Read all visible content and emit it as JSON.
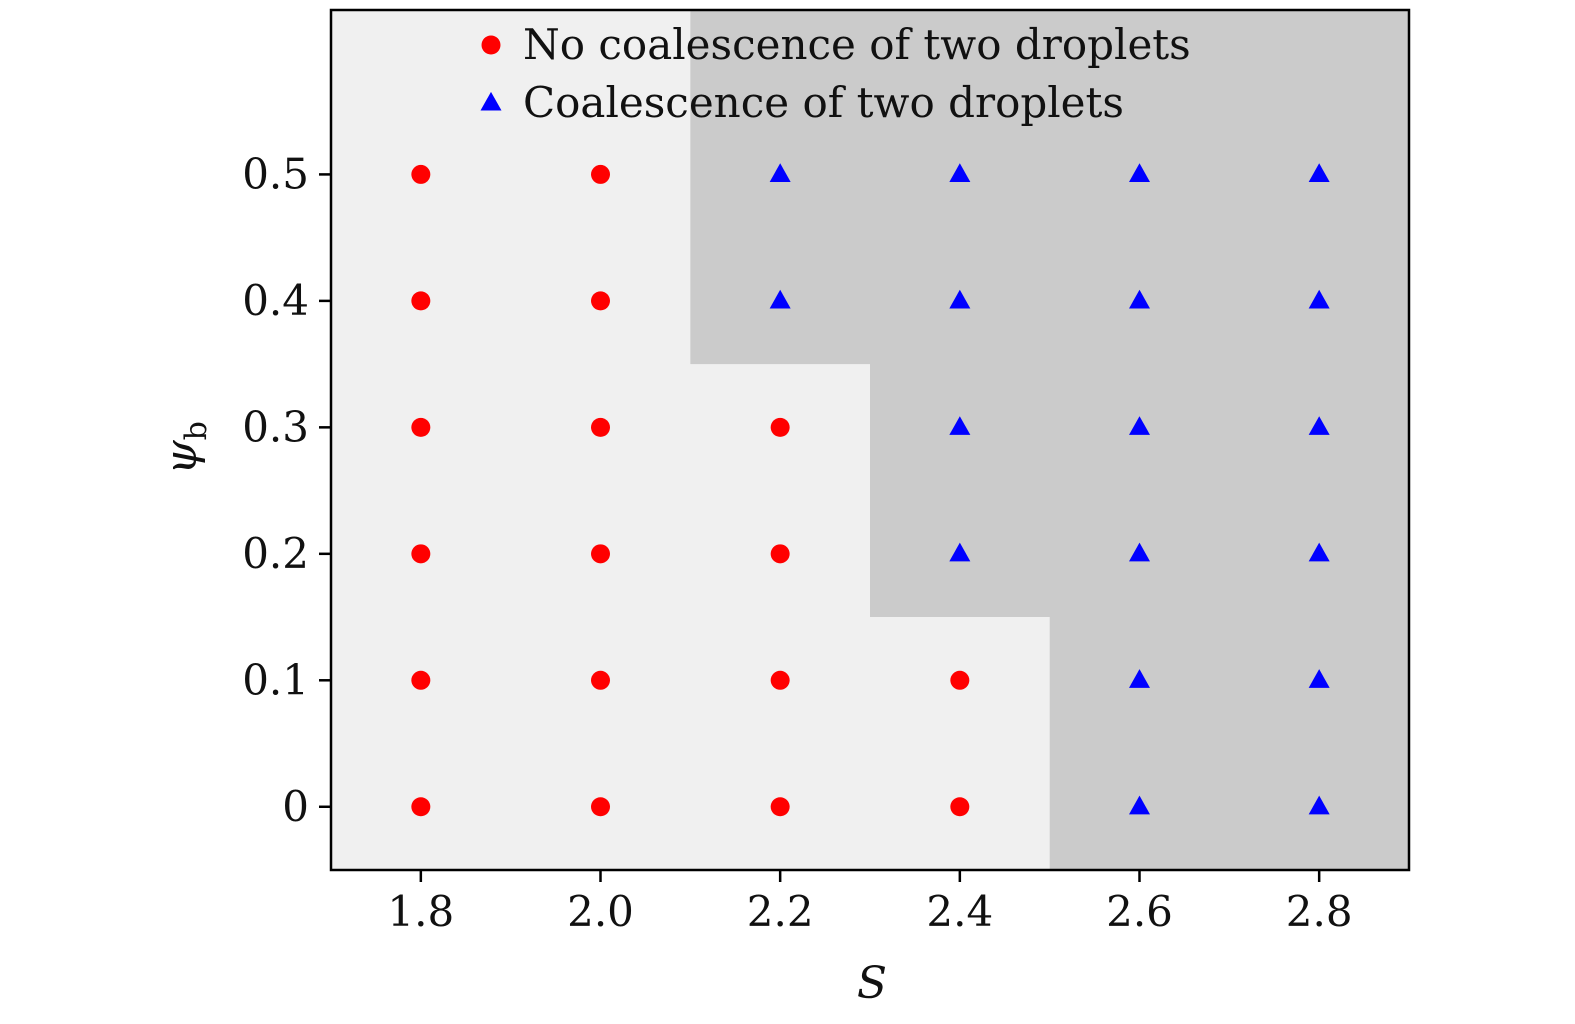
{
  "chart_data": {
    "type": "scatter",
    "xlabel": "S",
    "ylabel": {
      "symbol": "ψ",
      "subscript": "b"
    },
    "xlim": [
      1.7,
      2.9
    ],
    "ylim": [
      -0.05,
      0.63
    ],
    "x_ticks": [
      1.8,
      2.0,
      2.2,
      2.4,
      2.6,
      2.8
    ],
    "x_tick_labels": [
      "1.8",
      "2.0",
      "2.2",
      "2.4",
      "2.6",
      "2.8"
    ],
    "y_ticks": [
      0,
      0.1,
      0.2,
      0.3,
      0.4,
      0.5
    ],
    "y_tick_labels": [
      "0",
      "0.1",
      "0.2",
      "0.3",
      "0.4",
      "0.5"
    ],
    "grid": false,
    "legend_position": "top-center",
    "background_regions": [
      {
        "fill": "#f0f0f0",
        "polygon": [
          [
            1.7,
            -0.05
          ],
          [
            2.5,
            -0.05
          ],
          [
            2.5,
            0.15
          ],
          [
            2.3,
            0.15
          ],
          [
            2.3,
            0.35
          ],
          [
            2.1,
            0.35
          ],
          [
            2.1,
            0.63
          ],
          [
            1.7,
            0.63
          ]
        ]
      },
      {
        "fill": "#cbcbcb",
        "polygon": [
          [
            2.1,
            0.63
          ],
          [
            2.9,
            0.63
          ],
          [
            2.9,
            -0.05
          ],
          [
            2.5,
            -0.05
          ],
          [
            2.5,
            0.15
          ],
          [
            2.3,
            0.15
          ],
          [
            2.3,
            0.35
          ],
          [
            2.1,
            0.35
          ]
        ]
      }
    ],
    "series": [
      {
        "name": "No coalescence of two droplets",
        "marker": "circle",
        "color": "#ff0000",
        "points": [
          [
            1.8,
            0
          ],
          [
            1.8,
            0.1
          ],
          [
            1.8,
            0.2
          ],
          [
            1.8,
            0.3
          ],
          [
            1.8,
            0.4
          ],
          [
            1.8,
            0.5
          ],
          [
            2.0,
            0
          ],
          [
            2.0,
            0.1
          ],
          [
            2.0,
            0.2
          ],
          [
            2.0,
            0.3
          ],
          [
            2.0,
            0.4
          ],
          [
            2.0,
            0.5
          ],
          [
            2.2,
            0
          ],
          [
            2.2,
            0.1
          ],
          [
            2.2,
            0.2
          ],
          [
            2.2,
            0.3
          ],
          [
            2.4,
            0
          ],
          [
            2.4,
            0.1
          ]
        ]
      },
      {
        "name": "Coalescence of two droplets",
        "marker": "triangle",
        "color": "#0000ff",
        "points": [
          [
            2.2,
            0.4
          ],
          [
            2.2,
            0.5
          ],
          [
            2.4,
            0.2
          ],
          [
            2.4,
            0.3
          ],
          [
            2.4,
            0.4
          ],
          [
            2.4,
            0.5
          ],
          [
            2.6,
            0
          ],
          [
            2.6,
            0.1
          ],
          [
            2.6,
            0.2
          ],
          [
            2.6,
            0.3
          ],
          [
            2.6,
            0.4
          ],
          [
            2.6,
            0.5
          ],
          [
            2.8,
            0
          ],
          [
            2.8,
            0.1
          ],
          [
            2.8,
            0.2
          ],
          [
            2.8,
            0.3
          ],
          [
            2.8,
            0.4
          ],
          [
            2.8,
            0.5
          ]
        ]
      }
    ]
  }
}
